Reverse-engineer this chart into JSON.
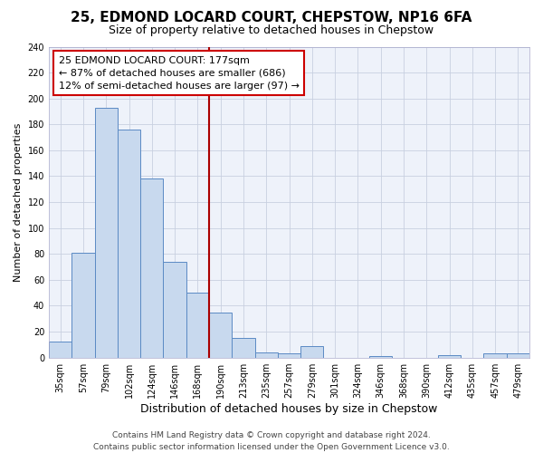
{
  "title": "25, EDMOND LOCARD COURT, CHEPSTOW, NP16 6FA",
  "subtitle": "Size of property relative to detached houses in Chepstow",
  "xlabel": "Distribution of detached houses by size in Chepstow",
  "ylabel": "Number of detached properties",
  "bar_labels": [
    "35sqm",
    "57sqm",
    "79sqm",
    "102sqm",
    "124sqm",
    "146sqm",
    "168sqm",
    "190sqm",
    "213sqm",
    "235sqm",
    "257sqm",
    "279sqm",
    "301sqm",
    "324sqm",
    "346sqm",
    "368sqm",
    "390sqm",
    "412sqm",
    "435sqm",
    "457sqm",
    "479sqm"
  ],
  "bar_values": [
    12,
    81,
    193,
    176,
    138,
    74,
    50,
    35,
    15,
    4,
    3,
    9,
    0,
    0,
    1,
    0,
    0,
    2,
    0,
    3,
    3
  ],
  "bar_color": "#c8d9ee",
  "bar_edge_color": "#5b8ac4",
  "background_color": "#ffffff",
  "plot_bg_color": "#eef2fa",
  "grid_color": "#c8d0e0",
  "vline_color": "#aa0000",
  "annotation_title": "25 EDMOND LOCARD COURT: 177sqm",
  "annotation_line1": "← 87% of detached houses are smaller (686)",
  "annotation_line2": "12% of semi-detached houses are larger (97) →",
  "annotation_box_color": "#cc0000",
  "ylim": [
    0,
    240
  ],
  "yticks": [
    0,
    20,
    40,
    60,
    80,
    100,
    120,
    140,
    160,
    180,
    200,
    220,
    240
  ],
  "footer_line1": "Contains HM Land Registry data © Crown copyright and database right 2024.",
  "footer_line2": "Contains public sector information licensed under the Open Government Licence v3.0.",
  "title_fontsize": 11,
  "subtitle_fontsize": 9,
  "xlabel_fontsize": 9,
  "ylabel_fontsize": 8,
  "tick_fontsize": 7,
  "annotation_fontsize": 8,
  "footer_fontsize": 6.5
}
